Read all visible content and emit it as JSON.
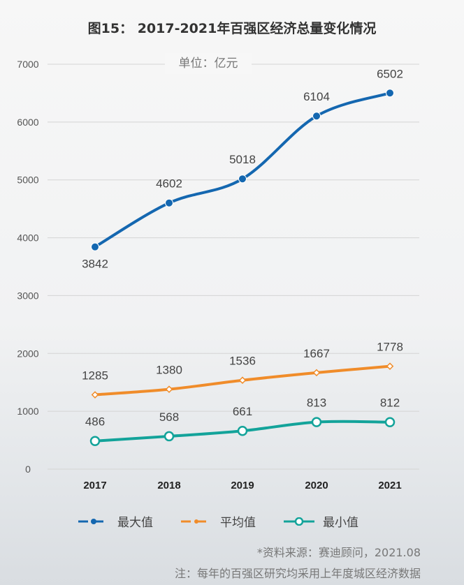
{
  "chart_data": {
    "type": "line",
    "title": "图15： 2017-2021年百强区经济总量变化情况",
    "unit_label": "单位：亿元",
    "categories": [
      "2017",
      "2018",
      "2019",
      "2020",
      "2021"
    ],
    "ylim": [
      0,
      7000
    ],
    "yticks": [
      0,
      1000,
      2000,
      3000,
      4000,
      5000,
      6000,
      7000
    ],
    "grid": true,
    "legend_position": "bottom",
    "series": [
      {
        "name": "最大值",
        "color": "#1467b0",
        "marker": "filled-circle",
        "values": [
          3842,
          4602,
          5018,
          6104,
          6502
        ]
      },
      {
        "name": "平均值",
        "color": "#f08c2a",
        "marker": "small-diamond",
        "values": [
          1285,
          1380,
          1536,
          1667,
          1778
        ]
      },
      {
        "name": "最小值",
        "color": "#13a39a",
        "marker": "hollow-circle",
        "values": [
          486,
          568,
          661,
          813,
          812
        ]
      }
    ]
  },
  "footer": {
    "source": "*资料来源：赛迪顾问，2021.08",
    "note": "注：每年的百强区研究均采用上年度城区经济数据"
  }
}
